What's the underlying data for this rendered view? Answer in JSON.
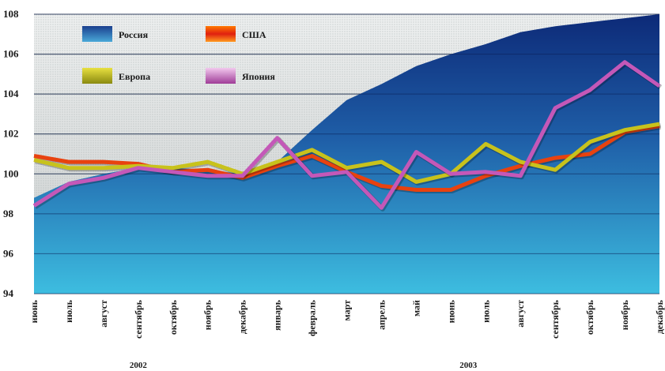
{
  "chart_data": {
    "type": "line",
    "title": "",
    "xlabel": "",
    "ylabel": "",
    "ylim": [
      94,
      108
    ],
    "yticks": [
      94,
      96,
      98,
      100,
      102,
      104,
      106,
      108
    ],
    "categories": [
      "июнь",
      "июль",
      "август",
      "сентябрь",
      "октябрь",
      "ноябрь",
      "декабрь",
      "январь",
      "февраль",
      "март",
      "апрель",
      "май",
      "июнь",
      "июль",
      "август",
      "сентябрь",
      "октябрь",
      "ноябрь",
      "декабрь"
    ],
    "year_groups": [
      {
        "label": "2002",
        "start": 0,
        "end": 6
      },
      {
        "label": "2003",
        "start": 7,
        "end": 18
      }
    ],
    "grid": true,
    "legend_position": "top-left",
    "series": [
      {
        "name": "Россия",
        "kind": "area",
        "color": "#1f5fa8",
        "values": [
          98.8,
          99.6,
          100.0,
          100.3,
          100.3,
          100.2,
          100.0,
          100.6,
          102.2,
          103.7,
          104.5,
          105.4,
          106.0,
          106.5,
          107.1,
          107.4,
          107.6,
          107.8,
          108.0
        ]
      },
      {
        "name": "США",
        "kind": "line",
        "color": "#e8420f",
        "values": [
          100.9,
          100.6,
          100.6,
          100.5,
          100.1,
          100.2,
          99.8,
          100.4,
          100.9,
          100.1,
          99.4,
          99.2,
          99.2,
          99.9,
          100.4,
          100.8,
          101.0,
          102.1,
          102.4
        ]
      },
      {
        "name": "Европа",
        "kind": "line",
        "color": "#c8c21c",
        "values": [
          100.7,
          100.3,
          100.3,
          100.4,
          100.3,
          100.6,
          100.0,
          100.6,
          101.2,
          100.3,
          100.6,
          99.6,
          100.0,
          101.5,
          100.6,
          100.2,
          101.6,
          102.2,
          102.5
        ]
      },
      {
        "name": "Япония",
        "kind": "line",
        "color": "#c458b8",
        "values": [
          98.4,
          99.5,
          99.8,
          100.3,
          100.1,
          99.9,
          99.9,
          101.8,
          99.9,
          100.1,
          98.3,
          101.1,
          100.0,
          100.1,
          99.9,
          103.3,
          104.2,
          105.6,
          104.4
        ]
      }
    ]
  }
}
